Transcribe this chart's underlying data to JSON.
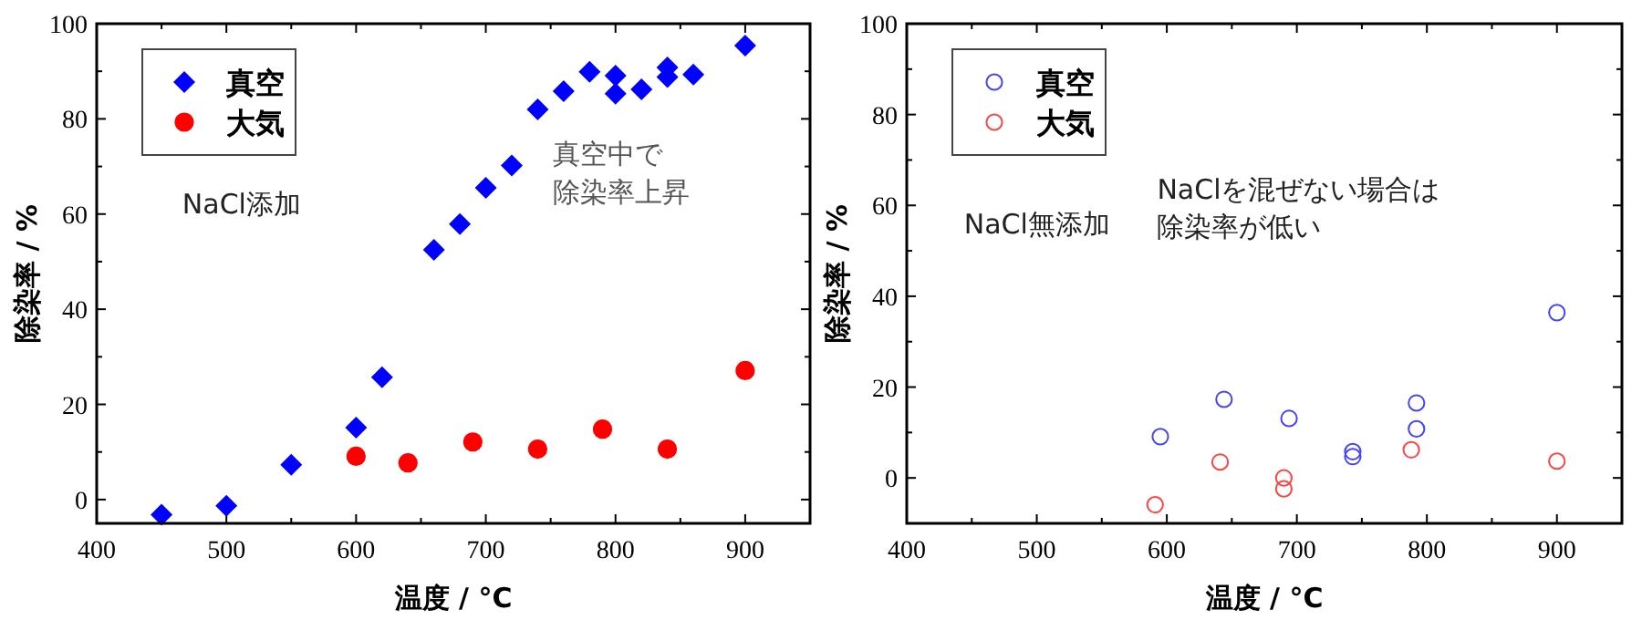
{
  "chart_data": [
    {
      "type": "scatter",
      "xlabel": "温度 / °C",
      "ylabel": "除染率  / %",
      "xlim": [
        400,
        950
      ],
      "ylim": [
        -5,
        100
      ],
      "xticks": [
        400,
        500,
        600,
        700,
        800,
        900
      ],
      "yticks": [
        0,
        20,
        40,
        60,
        80,
        100
      ],
      "legend": "top left",
      "annotations": [
        "NaCl添加",
        "真空中で",
        "除染率上昇"
      ],
      "series": [
        {
          "name": "真空",
          "color": "#0000ff",
          "marker": "diamond",
          "x": [
            450,
            500,
            550,
            600,
            620,
            660,
            680,
            700,
            720,
            740,
            760,
            780,
            800,
            800,
            820,
            840,
            840,
            860,
            900
          ],
          "values": [
            -3.2,
            -1.3,
            7.3,
            15.1,
            25.7,
            52.5,
            57.9,
            65.5,
            70.2,
            82.0,
            85.8,
            89.9,
            89.1,
            85.3,
            86.2,
            90.8,
            88.8,
            89.3,
            95.4
          ]
        },
        {
          "name": "大気",
          "color": "#ff0000",
          "marker": "circle",
          "x": [
            600,
            640,
            690,
            740,
            790,
            840,
            900
          ],
          "values": [
            9.1,
            7.7,
            12.1,
            10.6,
            14.8,
            10.6,
            27.1
          ]
        }
      ]
    },
    {
      "type": "scatter",
      "xlabel": "温度 / °C",
      "ylabel": "除染率 / %",
      "xlim": [
        400,
        950
      ],
      "ylim": [
        -10,
        100
      ],
      "xticks": [
        400,
        500,
        600,
        700,
        800,
        900
      ],
      "yticks": [
        0,
        20,
        40,
        60,
        80,
        100
      ],
      "legend": "top left",
      "marker": "circle",
      "annotations": [
        "NaCl無添加",
        "NaClを混ぜない場合は",
        "除染率が低い"
      ],
      "series": [
        {
          "name": "真空",
          "color": "#4444ff",
          "x": [
            595,
            644,
            694,
            743,
            743,
            792,
            792,
            900
          ],
          "values": [
            9.1,
            17.3,
            13.1,
            5.8,
            4.7,
            16.5,
            10.8,
            36.4
          ]
        },
        {
          "name": "大気",
          "color": "#ff4444",
          "x": [
            591,
            641,
            690,
            690,
            788,
            900
          ],
          "values": [
            -5.9,
            3.5,
            0,
            -2.4,
            6.2,
            3.7
          ]
        }
      ]
    }
  ]
}
